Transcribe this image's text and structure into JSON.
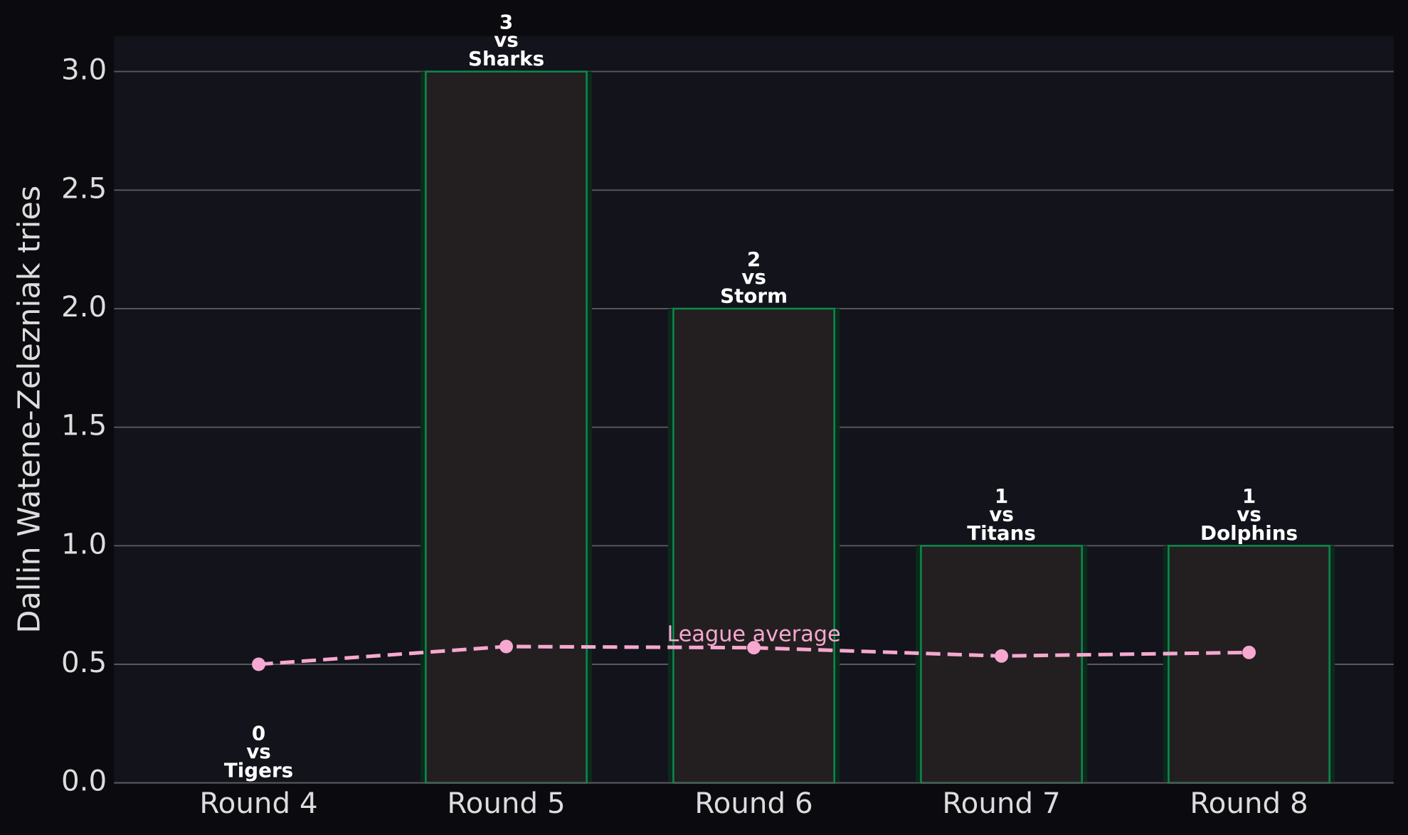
{
  "chart_data": {
    "type": "bar",
    "y_label": "Dallin Watene-Zelezniak tries",
    "categories": [
      "Round 4",
      "Round 5",
      "Round 6",
      "Round 7",
      "Round 8"
    ],
    "values": [
      0,
      3,
      2,
      1,
      1
    ],
    "opponent_prefix": "vs",
    "opponents": [
      "Tigers",
      "Sharks",
      "Storm",
      "Titans",
      "Dolphins"
    ],
    "color": "#231f20",
    "edge_color": "#0c8a4c",
    "line_series": {
      "name": "League average",
      "color": "#f7a8d0",
      "values": [
        0.5,
        0.575,
        0.57,
        0.535,
        0.55
      ]
    },
    "ylim": [
      0,
      3.15
    ],
    "yticks": [
      0.0,
      0.5,
      1.0,
      1.5,
      2.0,
      2.5,
      3.0
    ],
    "grid": true
  }
}
